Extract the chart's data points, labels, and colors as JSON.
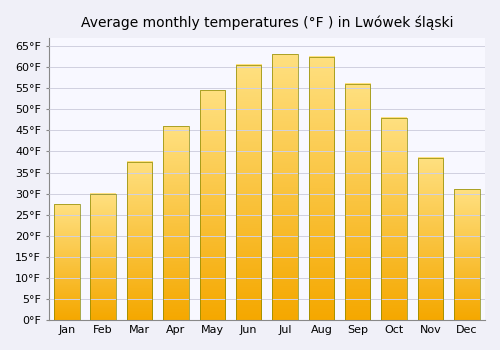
{
  "title": "Average monthly temperatures (°F ) in Lwówek śląski",
  "months": [
    "Jan",
    "Feb",
    "Mar",
    "Apr",
    "May",
    "Jun",
    "Jul",
    "Aug",
    "Sep",
    "Oct",
    "Nov",
    "Dec"
  ],
  "values": [
    27.5,
    30.0,
    37.5,
    46.0,
    54.5,
    60.5,
    63.0,
    62.5,
    56.0,
    48.0,
    38.5,
    31.0
  ],
  "bar_color_bottom": "#F5A800",
  "bar_color_top": "#FFE080",
  "bar_edge_color": "#888800",
  "ylim": [
    0,
    67
  ],
  "yticks": [
    0,
    5,
    10,
    15,
    20,
    25,
    30,
    35,
    40,
    45,
    50,
    55,
    60,
    65
  ],
  "background_color": "#f0f0f8",
  "plot_bg_color": "#f8f8ff",
  "grid_color": "#d0d0e0",
  "title_fontsize": 10,
  "tick_fontsize": 8,
  "bar_width": 0.7
}
